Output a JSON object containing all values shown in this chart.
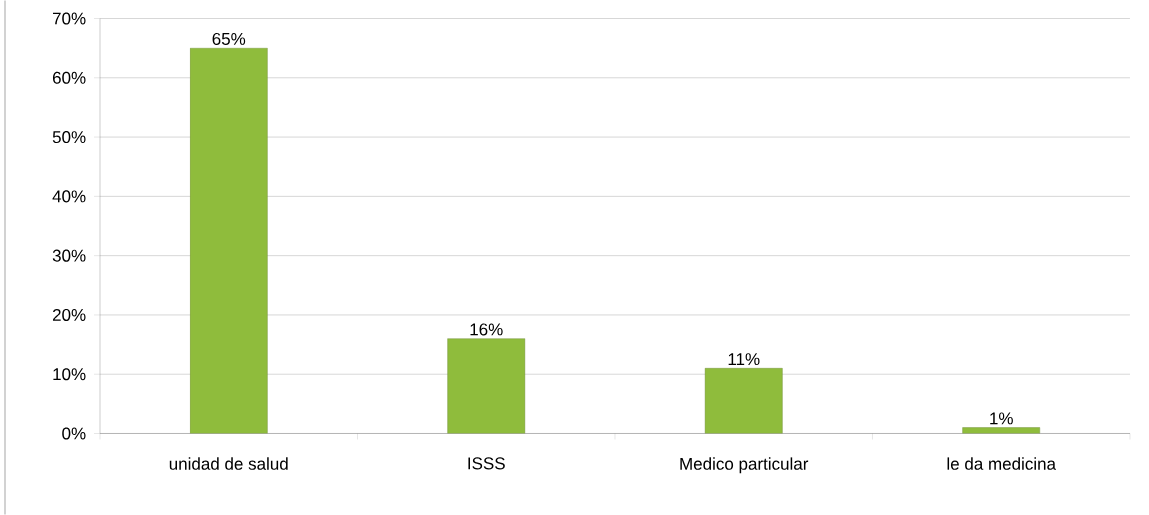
{
  "chart_data": {
    "type": "bar",
    "categories": [
      "unidad de salud",
      "ISSS",
      "Medico particular",
      "le da medicina"
    ],
    "values": [
      65,
      16,
      11,
      1
    ],
    "value_labels": [
      "65%",
      "16%",
      "11%",
      "1%"
    ],
    "color": "#8fbc3c",
    "ylim": [
      0,
      70
    ],
    "yticks": [
      {
        "value": 0,
        "label": "0%"
      },
      {
        "value": 10,
        "label": "10%"
      },
      {
        "value": 20,
        "label": "20%"
      },
      {
        "value": 30,
        "label": "30%"
      },
      {
        "value": 40,
        "label": "40%"
      },
      {
        "value": 50,
        "label": "50%"
      },
      {
        "value": 60,
        "label": "60%"
      },
      {
        "value": 70,
        "label": "70%"
      }
    ],
    "grid": "y"
  }
}
